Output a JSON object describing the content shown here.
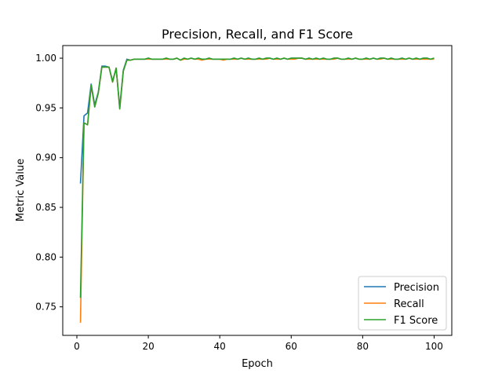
{
  "chart_data": {
    "type": "line",
    "title": "Precision, Recall, and F1 Score",
    "xlabel": "Epoch",
    "ylabel": "Metric Value",
    "xlim": [
      -3.95,
      104.95
    ],
    "ylim": [
      0.7213,
      1.0127
    ],
    "xticks": [
      0,
      20,
      40,
      60,
      80,
      100
    ],
    "yticks": [
      0.75,
      0.8,
      0.85,
      0.9,
      0.95,
      1.0
    ],
    "ytick_labels": [
      "0.75",
      "0.80",
      "0.85",
      "0.90",
      "0.95",
      "1.00"
    ],
    "grid": false,
    "legend_position": "lower-right",
    "x": [
      1,
      2,
      3,
      4,
      5,
      6,
      7,
      8,
      9,
      10,
      11,
      12,
      13,
      14,
      15,
      16,
      17,
      18,
      19,
      20,
      21,
      22,
      23,
      24,
      25,
      26,
      27,
      28,
      29,
      30,
      31,
      32,
      33,
      34,
      35,
      36,
      37,
      38,
      39,
      40,
      41,
      42,
      43,
      44,
      45,
      46,
      47,
      48,
      49,
      50,
      51,
      52,
      53,
      54,
      55,
      56,
      57,
      58,
      59,
      60,
      61,
      62,
      63,
      64,
      65,
      66,
      67,
      68,
      69,
      70,
      71,
      72,
      73,
      74,
      75,
      76,
      77,
      78,
      79,
      80,
      81,
      82,
      83,
      84,
      85,
      86,
      87,
      88,
      89,
      90,
      91,
      92,
      93,
      94,
      95,
      96,
      97,
      98,
      99,
      100
    ],
    "series": [
      {
        "name": "Precision",
        "color": "#1f77b4",
        "values": [
          0.874,
          0.942,
          0.945,
          0.974,
          0.953,
          0.966,
          0.992,
          0.992,
          0.991,
          0.977,
          0.99,
          0.951,
          0.988,
          0.999,
          0.998,
          0.999,
          0.999,
          0.999,
          0.999,
          1.0,
          0.999,
          0.999,
          0.999,
          0.999,
          1.0,
          0.999,
          0.999,
          1.0,
          0.998,
          1.0,
          0.999,
          1.0,
          0.999,
          1.0,
          0.999,
          0.999,
          1.0,
          0.999,
          0.999,
          0.999,
          0.999,
          0.999,
          0.999,
          1.0,
          0.999,
          1.0,
          0.999,
          1.0,
          0.999,
          0.999,
          1.0,
          0.999,
          1.0,
          1.0,
          0.999,
          1.0,
          0.999,
          1.0,
          0.999,
          1.0,
          1.0,
          1.0,
          1.0,
          0.999,
          1.0,
          0.999,
          1.0,
          0.999,
          1.0,
          0.999,
          0.999,
          1.0,
          1.0,
          0.999,
          0.999,
          1.0,
          0.999,
          1.0,
          0.999,
          0.999,
          1.0,
          0.999,
          1.0,
          0.999,
          1.0,
          1.0,
          0.999,
          1.0,
          0.999,
          0.999,
          1.0,
          0.999,
          1.0,
          0.999,
          1.0,
          0.999,
          1.0,
          1.0,
          0.999,
          1.0
        ]
      },
      {
        "name": "Recall",
        "color": "#ff7f0e",
        "values": [
          0.734,
          0.935,
          0.933,
          0.972,
          0.951,
          0.965,
          0.991,
          0.991,
          0.991,
          0.976,
          0.99,
          0.949,
          0.987,
          0.998,
          0.998,
          0.999,
          0.999,
          0.999,
          0.999,
          0.999,
          0.999,
          0.999,
          0.999,
          0.999,
          0.999,
          0.999,
          0.999,
          1.0,
          0.998,
          0.999,
          0.999,
          1.0,
          0.999,
          0.999,
          0.998,
          0.999,
          0.999,
          0.999,
          0.999,
          0.999,
          0.998,
          0.999,
          0.999,
          0.999,
          0.999,
          1.0,
          0.999,
          0.999,
          0.999,
          0.999,
          0.999,
          0.999,
          0.999,
          1.0,
          0.999,
          0.999,
          0.999,
          1.0,
          0.999,
          0.999,
          0.999,
          1.0,
          1.0,
          0.999,
          0.999,
          0.999,
          0.999,
          0.999,
          0.999,
          0.999,
          0.999,
          0.999,
          1.0,
          0.999,
          0.999,
          0.999,
          0.999,
          1.0,
          0.999,
          0.999,
          0.999,
          0.999,
          1.0,
          0.999,
          0.999,
          1.0,
          0.999,
          0.999,
          0.999,
          0.999,
          0.999,
          0.999,
          1.0,
          0.999,
          0.999,
          0.999,
          0.999,
          0.999,
          0.999,
          0.999
        ]
      },
      {
        "name": "F1 Score",
        "color": "#2ca02c",
        "values": [
          0.759,
          0.935,
          0.933,
          0.973,
          0.951,
          0.965,
          0.991,
          0.991,
          0.991,
          0.976,
          0.99,
          0.949,
          0.987,
          0.998,
          0.998,
          0.999,
          0.999,
          0.999,
          0.999,
          1.0,
          0.999,
          0.999,
          0.999,
          0.999,
          1.0,
          0.999,
          0.999,
          1.0,
          0.998,
          1.0,
          0.999,
          1.0,
          0.999,
          1.0,
          0.999,
          0.999,
          1.0,
          0.999,
          0.999,
          0.999,
          0.999,
          0.999,
          0.999,
          1.0,
          0.999,
          1.0,
          0.999,
          1.0,
          0.999,
          0.999,
          1.0,
          0.999,
          1.0,
          1.0,
          0.999,
          1.0,
          0.999,
          1.0,
          0.999,
          1.0,
          1.0,
          1.0,
          1.0,
          0.999,
          1.0,
          0.999,
          1.0,
          0.999,
          1.0,
          0.999,
          0.999,
          1.0,
          1.0,
          0.999,
          0.999,
          1.0,
          0.999,
          1.0,
          0.999,
          0.999,
          1.0,
          0.999,
          1.0,
          0.999,
          1.0,
          1.0,
          0.999,
          1.0,
          0.999,
          0.999,
          1.0,
          0.999,
          1.0,
          0.999,
          1.0,
          0.999,
          1.0,
          1.0,
          0.999,
          1.0
        ]
      }
    ]
  }
}
